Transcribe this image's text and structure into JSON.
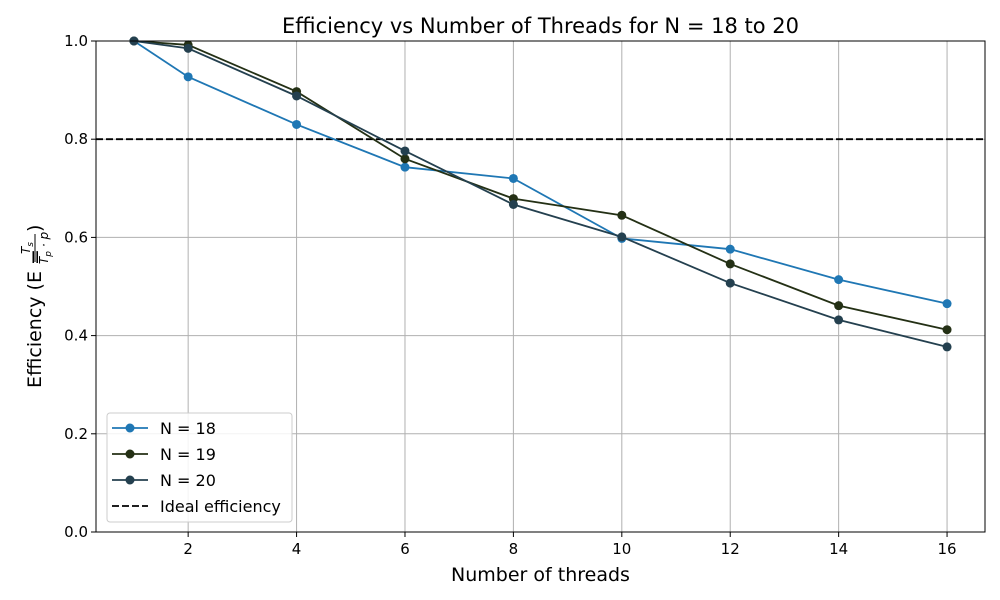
{
  "chart_data": {
    "type": "line",
    "title": "Efficiency vs Number of Threads for N = 18 to 20",
    "xlabel": "Number of threads",
    "ylabel_prefix": "Efficiency (E = ",
    "ylabel_fraction": {
      "numerator": "T",
      "numerator_sub": "s",
      "denominator": "T",
      "denominator_sub": "p",
      "denominator_suffix": " · p"
    },
    "ylabel_suffix": ")",
    "xlim": [
      0.3,
      16.7
    ],
    "ylim": [
      0.0,
      1.0
    ],
    "xticks": [
      2,
      4,
      6,
      8,
      10,
      12,
      14,
      16
    ],
    "yticks": [
      0.0,
      0.2,
      0.4,
      0.6,
      0.8,
      1.0
    ],
    "ytick_labels": [
      "0.0",
      "0.2",
      "0.4",
      "0.6",
      "0.8",
      "1.0"
    ],
    "grid": true,
    "legend_position": "lower-left",
    "x": [
      1,
      2,
      4,
      6,
      8,
      10,
      12,
      14,
      16
    ],
    "series": [
      {
        "name": "N = 18",
        "color": "#1f77b4",
        "values": [
          1.0,
          0.927,
          0.83,
          0.743,
          0.72,
          0.598,
          0.576,
          0.514,
          0.465
        ]
      },
      {
        "name": "N = 19",
        "color": "#243015",
        "values": [
          1.0,
          0.992,
          0.897,
          0.76,
          0.679,
          0.645,
          0.546,
          0.461,
          0.412
        ]
      },
      {
        "name": "N = 20",
        "color": "#24404f",
        "values": [
          1.0,
          0.985,
          0.888,
          0.776,
          0.667,
          0.601,
          0.507,
          0.432,
          0.377
        ]
      }
    ],
    "reference_line": {
      "name": "Ideal efficiency",
      "y": 0.8,
      "color": "#000000",
      "style": "dashed"
    }
  }
}
